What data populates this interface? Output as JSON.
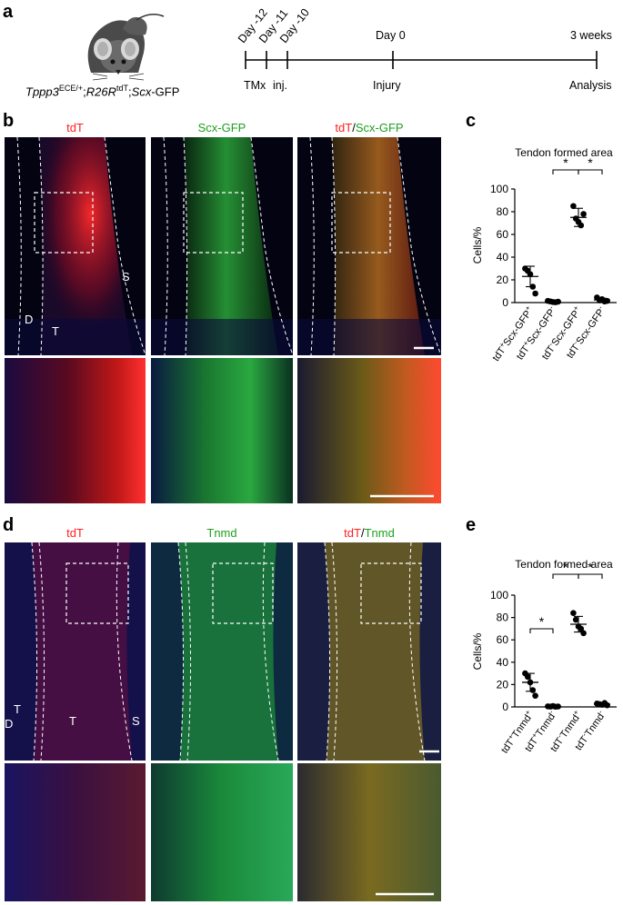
{
  "panel_a": {
    "label": "a",
    "genotype": {
      "g1": "Tppp3",
      "g1_sup": "ECE/+",
      "sep1": ";",
      "g2": "R26R",
      "g2_sup": "tdT",
      "sep2": ";",
      "g3": "Scx",
      "g3_suffix": "-GFP"
    },
    "timeline": {
      "ticks": [
        "Day -12",
        "Day -11",
        "Day -10",
        "Day 0",
        "3 weeks"
      ],
      "below_labels": [
        "TMx",
        "inj.",
        "Injury",
        "Analysis"
      ]
    }
  },
  "panel_b": {
    "label": "b",
    "channels": {
      "c1": "tdT",
      "c2": "Scx-GFP",
      "c3_red": "tdT",
      "c3_slash": "/",
      "c3_green": "Scx-GFP"
    },
    "region_labels": {
      "s": "S",
      "d": "D",
      "t": "T"
    }
  },
  "panel_c": {
    "label": "c",
    "chart_data": {
      "type": "scatter",
      "title": "Tendon formed area",
      "ylabel": "Cells/%",
      "ylim": [
        0,
        100
      ],
      "yticks": [
        "0",
        "20",
        "40",
        "60",
        "80",
        "100"
      ],
      "categories": [
        {
          "base": "tdT",
          "s1": "+",
          "mid": "Scx-GFP",
          "s2": "+"
        },
        {
          "base": "tdT",
          "s1": "+",
          "mid": "Scx-GFP",
          "s2": "-"
        },
        {
          "base": "tdT",
          "s1": "-",
          "mid": "Scx-GFP",
          "s2": "+"
        },
        {
          "base": "tdT",
          "s1": "-",
          "mid": "Scx-GFP",
          "s2": "-"
        }
      ],
      "points": [
        [
          30,
          28,
          25,
          14,
          8
        ],
        [
          1.5,
          1,
          0.5,
          0.3,
          0.8
        ],
        [
          85,
          74,
          71,
          68,
          78
        ],
        [
          4.5,
          2,
          3,
          1,
          1.5
        ]
      ],
      "means": [
        23,
        0.8,
        75,
        2.3
      ],
      "sd": [
        9,
        0.5,
        8,
        1.5
      ],
      "significance": [
        {
          "from": 1,
          "to": 2,
          "label": "*"
        },
        {
          "from": 2,
          "to": 3,
          "label": "*"
        }
      ]
    }
  },
  "panel_d": {
    "label": "d",
    "channels": {
      "c1": "tdT",
      "c2": "Tnmd",
      "c3_red": "tdT",
      "c3_slash": "/",
      "c3_green": "Tnmd"
    },
    "region_labels": {
      "t1": "T",
      "d": "D",
      "t2": "T",
      "s": "S"
    }
  },
  "panel_e": {
    "label": "e",
    "chart_data": {
      "type": "scatter",
      "title": "Tendon formed area",
      "ylabel": "Cells/%",
      "ylim": [
        0,
        100
      ],
      "yticks": [
        "0",
        "20",
        "40",
        "60",
        "80",
        "100"
      ],
      "categories": [
        {
          "base": "tdT",
          "s1": "+",
          "mid": "Tnmd",
          "s2": "+"
        },
        {
          "base": "tdT",
          "s1": "+",
          "mid": "Tnmd",
          "s2": "-"
        },
        {
          "base": "tdT",
          "s1": "-",
          "mid": "Tnmd",
          "s2": "+"
        },
        {
          "base": "tdT",
          "s1": "-",
          "mid": "Tnmd",
          "s2": "-"
        }
      ],
      "points": [
        [
          30,
          27,
          22,
          15,
          10
        ],
        [
          0.5,
          0.3,
          0.8,
          0.2,
          0.4
        ],
        [
          84,
          78,
          72,
          70,
          66
        ],
        [
          3,
          2.5,
          2,
          3.5,
          1.5
        ]
      ],
      "means": [
        22,
        0.4,
        74,
        2.5
      ],
      "sd": [
        8,
        0.4,
        7,
        1.2
      ],
      "significance": [
        {
          "from": 0,
          "to": 1,
          "label": "*"
        },
        {
          "from": 1,
          "to": 2,
          "label": "*"
        },
        {
          "from": 2,
          "to": 3,
          "label": "*"
        }
      ]
    }
  }
}
